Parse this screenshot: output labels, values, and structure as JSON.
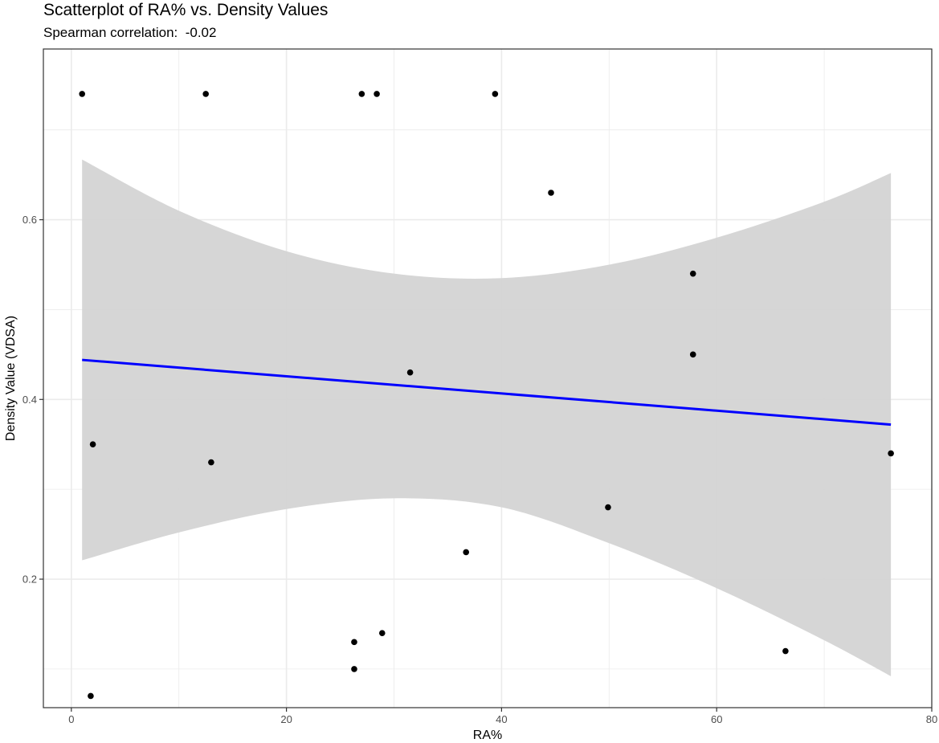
{
  "chart_data": {
    "type": "scatter",
    "title": "Scatterplot of RA% vs. Density Values",
    "subtitle": "Spearman correlation:  -0.02",
    "xlabel": "RA%",
    "ylabel": "Density Value (VDSA)",
    "xlim": [
      -2.6,
      80
    ],
    "ylim": [
      0.057,
      0.79
    ],
    "x_ticks": [
      0,
      20,
      40,
      60,
      80
    ],
    "y_ticks": [
      0.2,
      0.4,
      0.6
    ],
    "x_minor_ticks": [
      10,
      30,
      50,
      70
    ],
    "y_minor_ticks": [
      0.1,
      0.3,
      0.5,
      0.7
    ],
    "grid": true,
    "points": [
      {
        "x": 1.0,
        "y": 0.74
      },
      {
        "x": 12.5,
        "y": 0.74
      },
      {
        "x": 27.0,
        "y": 0.74
      },
      {
        "x": 28.4,
        "y": 0.74
      },
      {
        "x": 39.4,
        "y": 0.74
      },
      {
        "x": 44.6,
        "y": 0.63
      },
      {
        "x": 57.8,
        "y": 0.54
      },
      {
        "x": 57.8,
        "y": 0.45
      },
      {
        "x": 31.5,
        "y": 0.43
      },
      {
        "x": 2.0,
        "y": 0.35
      },
      {
        "x": 13.0,
        "y": 0.33
      },
      {
        "x": 76.2,
        "y": 0.34
      },
      {
        "x": 49.9,
        "y": 0.28
      },
      {
        "x": 36.7,
        "y": 0.23
      },
      {
        "x": 28.9,
        "y": 0.14
      },
      {
        "x": 26.3,
        "y": 0.13
      },
      {
        "x": 26.3,
        "y": 0.1
      },
      {
        "x": 66.4,
        "y": 0.12
      },
      {
        "x": 1.8,
        "y": 0.07
      }
    ],
    "trend_line": {
      "x": [
        1.0,
        76.2
      ],
      "y": [
        0.444,
        0.372
      ],
      "color": "#0000ff"
    },
    "confidence_band": {
      "x": [
        1.0,
        10,
        20,
        30,
        40,
        50,
        60,
        70,
        76.2
      ],
      "upper": [
        0.667,
        0.61,
        0.565,
        0.54,
        0.535,
        0.55,
        0.58,
        0.62,
        0.652
      ],
      "lower": [
        0.221,
        0.252,
        0.278,
        0.29,
        0.28,
        0.24,
        0.19,
        0.132,
        0.092
      ],
      "color": "#d3d3d3"
    },
    "point_color": "#000000",
    "grid_color": "#ebebeb"
  }
}
